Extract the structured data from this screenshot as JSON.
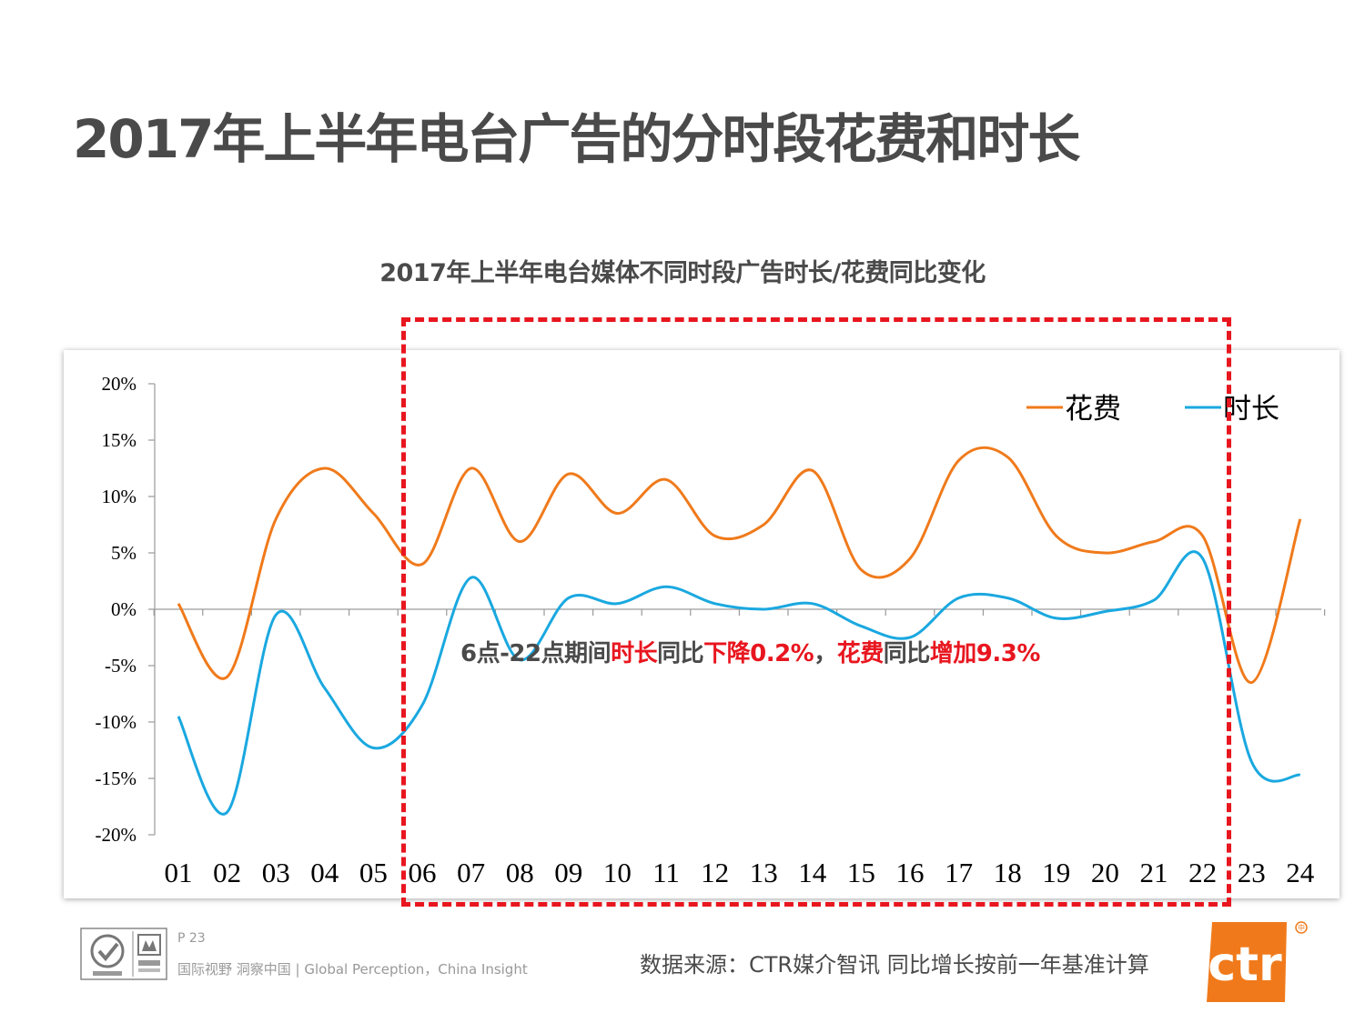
{
  "page_title": "2017年上半年电台广告的分时段花费和时长",
  "annotation": {
    "p1": "6点-22点期间",
    "p2": "时长",
    "p3": "同比",
    "p4": "下降0.2%",
    "p5": "，",
    "p6": "花费",
    "p7": "同比",
    "p8": "增加9.3%"
  },
  "footer": {
    "page": "P 23",
    "slogan": "国际视野  洞察中国 |  Global Perception，China Insight",
    "source": "数据来源：CTR媒介智讯    同比增长按前一年基准计算",
    "logo_text": "ctr"
  },
  "colors": {
    "spend": "#f07a1b",
    "duration": "#1aa8e0",
    "highlight": "#e8161f"
  },
  "chart_data": {
    "type": "line",
    "title": "2017年上半年电台媒体不同时段广告时长/花费同比变化",
    "categories": [
      "01",
      "02",
      "03",
      "04",
      "05",
      "06",
      "07",
      "08",
      "09",
      "10",
      "11",
      "12",
      "13",
      "14",
      "15",
      "16",
      "17",
      "18",
      "19",
      "20",
      "21",
      "22",
      "23",
      "24"
    ],
    "yticks": [
      "20%",
      "15%",
      "10%",
      "5%",
      "0%",
      "-5%",
      "-10%",
      "-15%",
      "-20%"
    ],
    "ylim": [
      -20,
      20
    ],
    "legend_position": "top-right",
    "series": [
      {
        "name": "花费",
        "color": "#f07a1b",
        "values": [
          0.5,
          -6,
          8,
          12.5,
          8.5,
          4,
          12.5,
          6,
          12,
          8.5,
          11.5,
          6.5,
          7.5,
          12.3,
          3.5,
          4.5,
          13.2,
          13.5,
          6.5,
          5,
          6,
          6.5,
          -6.5,
          8
        ]
      },
      {
        "name": "时长",
        "color": "#1aa8e0",
        "values": [
          -9.5,
          -18,
          -0.5,
          -7,
          -12.3,
          -8.5,
          2.8,
          -4.5,
          1,
          0.5,
          2,
          0.5,
          0,
          0.5,
          -1.5,
          -2.5,
          1,
          1,
          -0.8,
          -0.2,
          0.8,
          4.5,
          -13.5,
          -14.7
        ]
      }
    ]
  }
}
